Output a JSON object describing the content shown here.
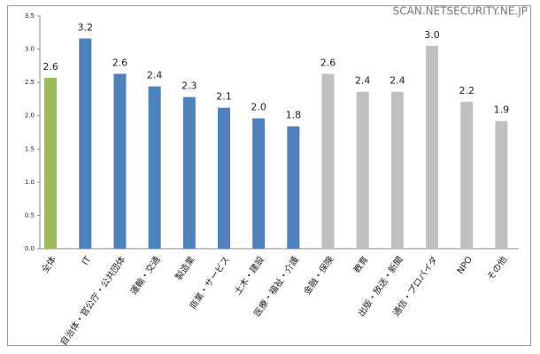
{
  "watermark": "SCAN.NETSECURITY.NE.JP",
  "chart_data": {
    "type": "bar",
    "categories": [
      "全体",
      "IT",
      "自治体・官公庁・公共団体",
      "運輸・交通",
      "製造業",
      "商業・サービス",
      "土木・建設",
      "医療・福祉・介護",
      "金融・保険",
      "教育",
      "出版・放送・新聞",
      "通信・プロバイダ",
      "NPO",
      "その他"
    ],
    "values": [
      2.57,
      3.16,
      2.63,
      2.44,
      2.28,
      2.12,
      1.96,
      1.84,
      2.63,
      2.36,
      2.36,
      3.05,
      2.21,
      1.92
    ],
    "value_labels": [
      "2.6",
      "3.2",
      "2.6",
      "2.4",
      "2.3",
      "2.1",
      "2.0",
      "1.8",
      "2.6",
      "2.4",
      "2.4",
      "3.0",
      "2.2",
      "1.9"
    ],
    "colors": [
      "#9bbb59",
      "#4f81bd",
      "#4f81bd",
      "#4f81bd",
      "#4f81bd",
      "#4f81bd",
      "#4f81bd",
      "#4f81bd",
      "#c0c0c0",
      "#c0c0c0",
      "#c0c0c0",
      "#c0c0c0",
      "#c0c0c0",
      "#c0c0c0"
    ],
    "ylim": [
      0,
      3.5
    ],
    "yticks": [
      {
        "value": 0,
        "label": "0.0"
      },
      0.5,
      {
        "value": 1,
        "label": "1.0"
      },
      1.5,
      {
        "value": 2,
        "label": "2.0"
      },
      2.5,
      {
        "value": 3,
        "label": "3.0"
      },
      3.5
    ],
    "grid": false
  }
}
